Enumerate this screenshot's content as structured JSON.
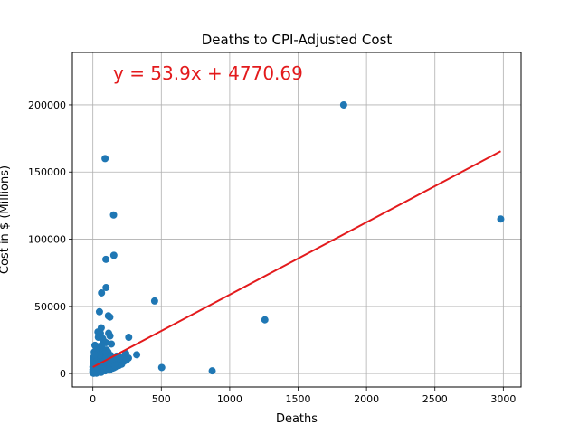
{
  "chart_data": {
    "type": "scatter",
    "title": "Deaths to CPI-Adjusted Cost",
    "xlabel": "Deaths",
    "ylabel": "Cost in $ (Millions)",
    "xlim": [
      -150,
      3130
    ],
    "ylim": [
      -10000,
      239000
    ],
    "xticks": [
      0,
      500,
      1000,
      1500,
      2000,
      2500,
      3000
    ],
    "yticks": [
      0,
      50000,
      100000,
      150000,
      200000
    ],
    "grid": true,
    "annotation": "y = 53.9x + 4770.69",
    "colors": {
      "points": "#1f77b4",
      "fit_line": "#e31a1c",
      "annotation": "#e31a1c",
      "grid": "#b0b0b0"
    },
    "regression": {
      "slope": 53.9,
      "intercept": 4770.69,
      "x_range": [
        0,
        2981
      ]
    },
    "points": [
      [
        1833,
        200000
      ],
      [
        2981,
        115000
      ],
      [
        1257,
        40000
      ],
      [
        872,
        2000
      ],
      [
        503,
        4500
      ],
      [
        451,
        54000
      ],
      [
        89,
        160000
      ],
      [
        151,
        118000
      ],
      [
        153,
        88000
      ],
      [
        95,
        85000
      ],
      [
        96,
        64000
      ],
      [
        63,
        60000
      ],
      [
        48,
        46000
      ],
      [
        113,
        43000
      ],
      [
        124,
        42000
      ],
      [
        61,
        34000
      ],
      [
        37,
        31000
      ],
      [
        55,
        30000
      ],
      [
        115,
        30000
      ],
      [
        125,
        28000
      ],
      [
        262,
        27000
      ],
      [
        40,
        27000
      ],
      [
        71,
        26000
      ],
      [
        80,
        24000
      ],
      [
        96,
        23000
      ],
      [
        135,
        22000
      ],
      [
        15,
        21000
      ],
      [
        45,
        20000
      ],
      [
        60,
        19000
      ],
      [
        75,
        18000
      ],
      [
        100,
        17500
      ],
      [
        110,
        16000
      ],
      [
        10,
        16000
      ],
      [
        30,
        15500
      ],
      [
        85,
        15000
      ],
      [
        320,
        14000
      ],
      [
        240,
        15000
      ],
      [
        175,
        13000
      ],
      [
        210,
        12000
      ],
      [
        180,
        12500
      ],
      [
        260,
        11500
      ],
      [
        55,
        13000
      ],
      [
        140,
        11000
      ],
      [
        5,
        12000
      ],
      [
        20,
        11000
      ],
      [
        35,
        10000
      ],
      [
        90,
        10500
      ],
      [
        120,
        9500
      ],
      [
        160,
        9000
      ],
      [
        200,
        8500
      ],
      [
        225,
        9000
      ],
      [
        5,
        9500
      ],
      [
        25,
        9000
      ],
      [
        40,
        8000
      ],
      [
        65,
        7500
      ],
      [
        105,
        8000
      ],
      [
        150,
        7000
      ],
      [
        175,
        6500
      ],
      [
        190,
        6000
      ],
      [
        210,
        7000
      ],
      [
        3,
        7000
      ],
      [
        12,
        6500
      ],
      [
        30,
        6000
      ],
      [
        50,
        5500
      ],
      [
        70,
        6500
      ],
      [
        95,
        6000
      ],
      [
        130,
        5500
      ],
      [
        165,
        5000
      ],
      [
        0,
        5000
      ],
      [
        8,
        4500
      ],
      [
        18,
        5000
      ],
      [
        28,
        4000
      ],
      [
        42,
        4500
      ],
      [
        58,
        3500
      ],
      [
        80,
        4000
      ],
      [
        115,
        3500
      ],
      [
        145,
        4000
      ],
      [
        0,
        3000
      ],
      [
        6,
        3500
      ],
      [
        15,
        2500
      ],
      [
        25,
        3000
      ],
      [
        38,
        2000
      ],
      [
        52,
        2500
      ],
      [
        68,
        3000
      ],
      [
        90,
        2000
      ],
      [
        120,
        2500
      ],
      [
        0,
        1500
      ],
      [
        4,
        2000
      ],
      [
        10,
        1000
      ],
      [
        20,
        1500
      ],
      [
        32,
        800
      ],
      [
        45,
        1200
      ],
      [
        60,
        900
      ],
      [
        2,
        500
      ],
      [
        14,
        700
      ],
      [
        26,
        300
      ],
      [
        0,
        800
      ],
      [
        8,
        1200
      ],
      [
        35,
        2800
      ],
      [
        75,
        11500
      ],
      [
        48,
        14000
      ],
      [
        22,
        17000
      ],
      [
        12,
        14000
      ],
      [
        65,
        21000
      ],
      [
        82,
        9000
      ],
      [
        100,
        12500
      ],
      [
        130,
        13500
      ],
      [
        155,
        4500
      ],
      [
        140,
        8000
      ],
      [
        5,
        200
      ],
      [
        160,
        6000
      ],
      [
        200,
        11000
      ],
      [
        245,
        10000
      ]
    ]
  }
}
